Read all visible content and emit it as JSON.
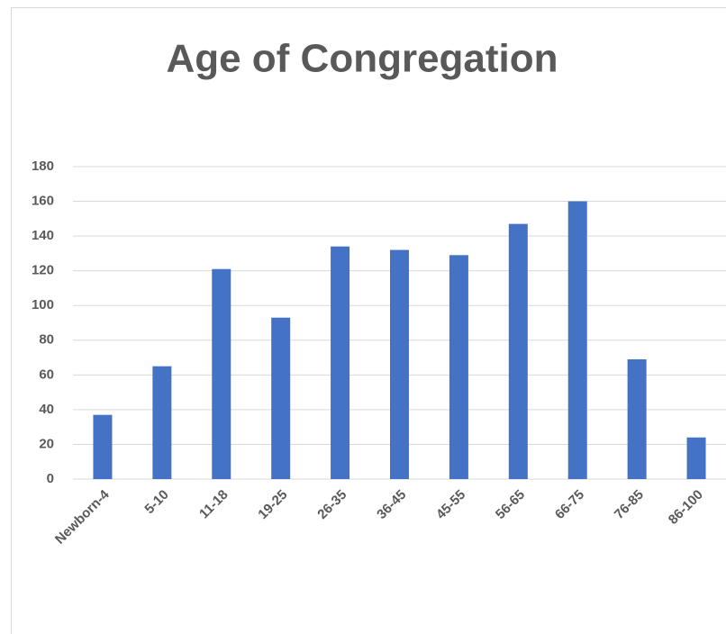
{
  "chart_data": {
    "type": "bar",
    "title": "Age of Congregation",
    "categories": [
      "Newborn-4",
      "5-10",
      "11-18",
      "19-25",
      "26-35",
      "36-45",
      "45-55",
      "56-65",
      "66-75",
      "76-85",
      "86-100"
    ],
    "values": [
      37,
      65,
      121,
      93,
      134,
      132,
      129,
      147,
      160,
      69,
      24
    ],
    "color": "#4472c4",
    "ylim": [
      0,
      180
    ],
    "yticks": [
      0,
      20,
      40,
      60,
      80,
      100,
      120,
      140,
      160,
      180
    ],
    "grid": true
  }
}
